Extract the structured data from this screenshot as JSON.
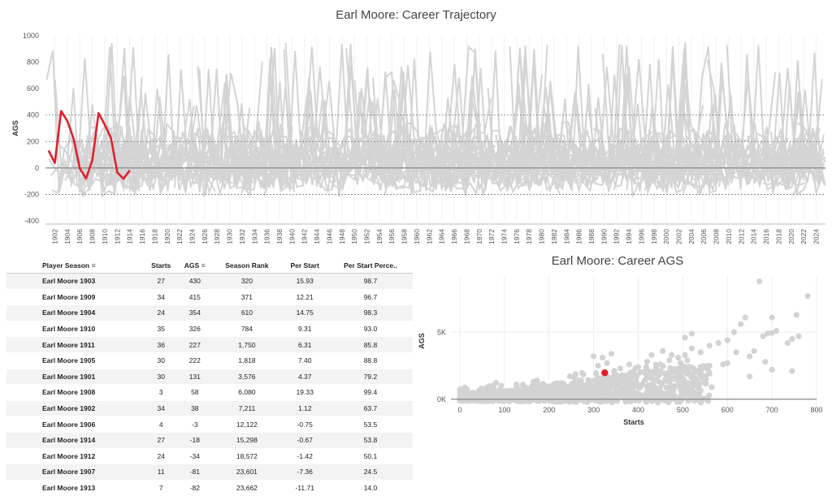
{
  "chart_data": [
    {
      "type": "line",
      "title": "Earl Moore: Career Trajectory",
      "ylabel": "AGS",
      "xlabel": "",
      "ylim": [
        -400,
        1000
      ],
      "yticks": [
        -400,
        -200,
        0,
        200,
        400,
        600,
        800,
        1000
      ],
      "xlim": [
        1900.5,
        2025.5
      ],
      "xticks": [
        "1902",
        "1904",
        "1906",
        "1908",
        "1910",
        "1912",
        "1914",
        "1916",
        "1918",
        "1920",
        "1922",
        "1924",
        "1926",
        "1928",
        "1930",
        "1932",
        "1934",
        "1936",
        "1938",
        "1940",
        "1942",
        "1944",
        "1946",
        "1948",
        "1950",
        "1952",
        "1954",
        "1956",
        "1958",
        "1960",
        "1962",
        "1964",
        "1966",
        "1968",
        "1970",
        "1972",
        "1974",
        "1976",
        "1978",
        "1980",
        "1982",
        "1984",
        "1986",
        "1988",
        "1990",
        "1992",
        "1994",
        "1996",
        "1998",
        "2000",
        "2002",
        "2004",
        "2006",
        "2008",
        "2010",
        "2012",
        "2014",
        "2016",
        "2018",
        "2020",
        "2022",
        "2024"
      ],
      "reference_lines": [
        -200,
        200,
        400
      ],
      "highlight_color": "#e0202a",
      "background_color": "#d4d4d4",
      "series": [
        {
          "x": [
            1901,
            1902,
            1903,
            1904,
            1905,
            1906,
            1907,
            1908,
            1909,
            1910,
            1911,
            1912,
            1913,
            1914
          ],
          "y": [
            131,
            38,
            430,
            354,
            222,
            -3,
            -81,
            58,
            415,
            326,
            227,
            -34,
            -82,
            -18
          ]
        }
      ]
    },
    {
      "type": "table",
      "columns": [
        "Player Season",
        "Starts",
        "AGS",
        "Season Rank",
        "Per Start",
        "Per Start Perce.."
      ],
      "rows": [
        [
          "Earl Moore 1903",
          "27",
          "430",
          "320",
          "15.93",
          "98.7"
        ],
        [
          "Earl Moore 1909",
          "34",
          "415",
          "371",
          "12.21",
          "96.7"
        ],
        [
          "Earl Moore 1904",
          "24",
          "354",
          "610",
          "14.75",
          "98.3"
        ],
        [
          "Earl Moore 1910",
          "35",
          "326",
          "784",
          "9.31",
          "93.0"
        ],
        [
          "Earl Moore 1911",
          "36",
          "227",
          "1,750",
          "6.31",
          "85.8"
        ],
        [
          "Earl Moore 1905",
          "30",
          "222",
          "1,818",
          "7.40",
          "88.8"
        ],
        [
          "Earl Moore 1901",
          "30",
          "131",
          "3,576",
          "4.37",
          "79.2"
        ],
        [
          "Earl Moore 1908",
          "3",
          "58",
          "6,080",
          "19.33",
          "99.4"
        ],
        [
          "Earl Moore 1902",
          "34",
          "38",
          "7,211",
          "1.12",
          "63.7"
        ],
        [
          "Earl Moore 1906",
          "4",
          "-3",
          "12,122",
          "-0.75",
          "53.5"
        ],
        [
          "Earl Moore 1914",
          "27",
          "-18",
          "15,298",
          "-0.67",
          "53.8"
        ],
        [
          "Earl Moore 1912",
          "24",
          "-34",
          "18,572",
          "-1.42",
          "50.1"
        ],
        [
          "Earl Moore 1907",
          "11",
          "-81",
          "23,601",
          "-7.36",
          "24.5"
        ],
        [
          "Earl Moore 1913",
          "7",
          "-82",
          "23,662",
          "-11.71",
          "14.0"
        ]
      ]
    },
    {
      "type": "scatter",
      "title": "Earl Moore: Career AGS",
      "xlabel": "Starts",
      "ylabel": "AGS",
      "xlim": [
        -20,
        800
      ],
      "ylim": [
        -500,
        9200
      ],
      "xticks": [
        0,
        100,
        200,
        300,
        400,
        500,
        600,
        700,
        800
      ],
      "yticks": [
        {
          "value": 0,
          "label": "0K"
        },
        {
          "value": 5000,
          "label": "5K"
        }
      ],
      "highlight": {
        "x": 325,
        "y": 1970,
        "color": "#e0202a"
      },
      "outer_points": [
        [
          672,
          8800
        ],
        [
          780,
          7700
        ],
        [
          755,
          6300
        ],
        [
          700,
          6100
        ],
        [
          710,
          5100
        ],
        [
          745,
          4500
        ],
        [
          680,
          4700
        ],
        [
          690,
          4900
        ],
        [
          700,
          4950
        ],
        [
          640,
          6100
        ],
        [
          630,
          5600
        ],
        [
          615,
          5000
        ],
        [
          600,
          4400
        ],
        [
          580,
          4200
        ],
        [
          560,
          4000
        ],
        [
          520,
          4900
        ],
        [
          505,
          4600
        ],
        [
          540,
          3500
        ],
        [
          520,
          3800
        ],
        [
          505,
          3300
        ],
        [
          490,
          3100
        ],
        [
          495,
          2700
        ],
        [
          620,
          3500
        ],
        [
          660,
          3600
        ],
        [
          650,
          3200
        ],
        [
          685,
          2800
        ],
        [
          700,
          2200
        ],
        [
          745,
          2100
        ],
        [
          760,
          4700
        ],
        [
          735,
          4200
        ],
        [
          600,
          2700
        ],
        [
          590,
          2600
        ],
        [
          540,
          2400
        ],
        [
          510,
          2900
        ],
        [
          470,
          2900
        ],
        [
          450,
          2600
        ],
        [
          430,
          3300
        ],
        [
          420,
          2800
        ],
        [
          400,
          2400
        ],
        [
          380,
          2600
        ],
        [
          360,
          2300
        ],
        [
          340,
          3400
        ],
        [
          320,
          3100
        ],
        [
          300,
          3200
        ],
        [
          330,
          2700
        ],
        [
          310,
          2500
        ],
        [
          455,
          3600
        ],
        [
          475,
          3300
        ],
        [
          450,
          2100
        ],
        [
          405,
          2000
        ],
        [
          440,
          2300
        ],
        [
          460,
          1900
        ],
        [
          520,
          1600
        ],
        [
          560,
          1900
        ],
        [
          565,
          900
        ],
        [
          540,
          650
        ],
        [
          470,
          1400
        ],
        [
          560,
          2500
        ],
        [
          650,
          1700
        ]
      ]
    }
  ]
}
